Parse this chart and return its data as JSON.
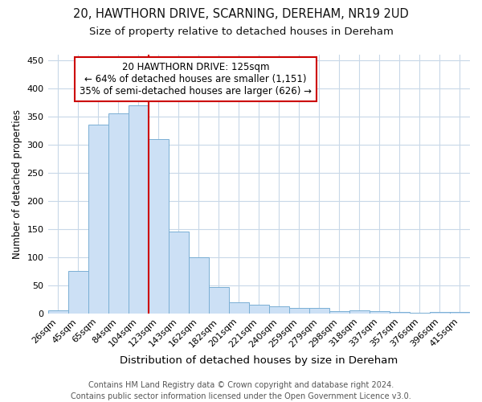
{
  "title1": "20, HAWTHORN DRIVE, SCARNING, DEREHAM, NR19 2UD",
  "title2": "Size of property relative to detached houses in Dereham",
  "xlabel": "Distribution of detached houses by size in Dereham",
  "ylabel": "Number of detached properties",
  "categories": [
    "26sqm",
    "45sqm",
    "65sqm",
    "84sqm",
    "104sqm",
    "123sqm",
    "143sqm",
    "162sqm",
    "182sqm",
    "201sqm",
    "221sqm",
    "240sqm",
    "259sqm",
    "279sqm",
    "298sqm",
    "318sqm",
    "337sqm",
    "357sqm",
    "376sqm",
    "396sqm",
    "415sqm"
  ],
  "values": [
    5,
    76,
    335,
    355,
    370,
    310,
    145,
    99,
    47,
    20,
    15,
    13,
    10,
    10,
    4,
    5,
    4,
    3,
    1,
    3,
    2
  ],
  "bar_color": "#cce0f5",
  "bar_edge_color": "#7aafd4",
  "vline_color": "#cc0000",
  "annotation_text": "20 HAWTHORN DRIVE: 125sqm\n← 64% of detached houses are smaller (1,151)\n35% of semi-detached houses are larger (626) →",
  "annotation_box_color": "#ffffff",
  "annotation_box_edge": "#cc0000",
  "footer1": "Contains HM Land Registry data © Crown copyright and database right 2024.",
  "footer2": "Contains public sector information licensed under the Open Government Licence v3.0.",
  "ylim": [
    0,
    460
  ],
  "yticks": [
    0,
    50,
    100,
    150,
    200,
    250,
    300,
    350,
    400,
    450
  ],
  "title1_fontsize": 10.5,
  "title2_fontsize": 9.5,
  "xlabel_fontsize": 9.5,
  "ylabel_fontsize": 8.5,
  "tick_fontsize": 8,
  "annotation_fontsize": 8.5,
  "footer_fontsize": 7,
  "background_color": "#ffffff",
  "grid_color": "#c8d8e8"
}
